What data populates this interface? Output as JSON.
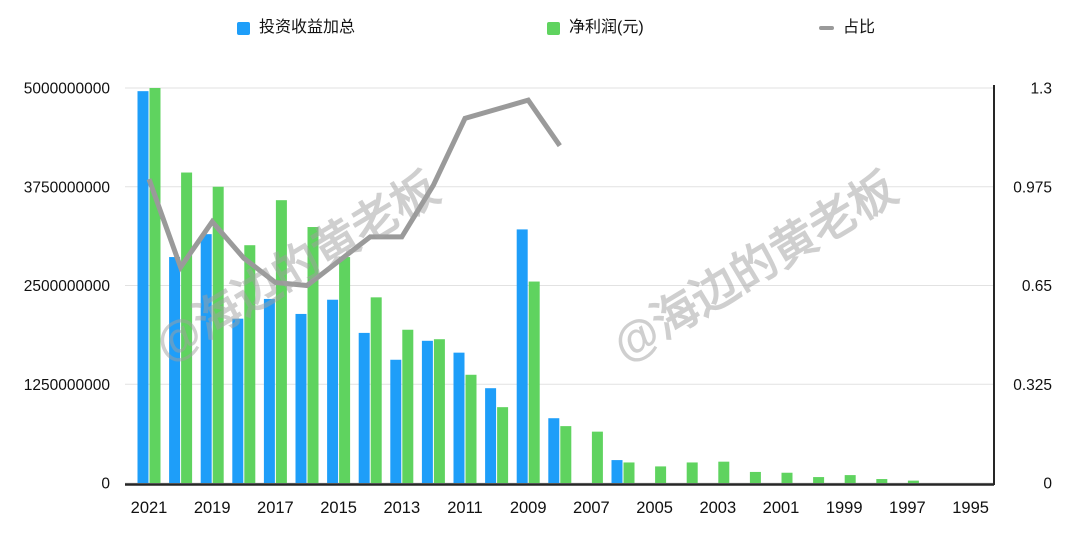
{
  "legend": {
    "items": [
      {
        "label": "投资收益加总",
        "color": "#1E9EF9",
        "marker": "square"
      },
      {
        "label": "净利润(元)",
        "color": "#5FD35F",
        "marker": "square"
      },
      {
        "label": "占比",
        "color": "#9A9A9A",
        "marker": "line"
      }
    ]
  },
  "watermark": {
    "text": "@海边的黄老板"
  },
  "chart_data": {
    "type": "bar",
    "subtype": "grouped bars with secondary-axis line",
    "title": "",
    "xlabel": "",
    "ylabel": "",
    "grid": true,
    "legend_position": "top",
    "categories": [
      "2021",
      "2020",
      "2019",
      "2018",
      "2017",
      "2016",
      "2015",
      "2014",
      "2013",
      "2012",
      "2011",
      "2010",
      "2009",
      "2008",
      "2007",
      "2006",
      "2005",
      "2004",
      "2003",
      "2002",
      "2001",
      "2000",
      "1999",
      "1998",
      "1997",
      "1996",
      "1995"
    ],
    "x_tick_labels": [
      "2021",
      "2019",
      "2017",
      "2015",
      "2013",
      "2011",
      "2009",
      "2007",
      "2005",
      "2003",
      "2001",
      "1999",
      "1997",
      "1995"
    ],
    "left_axis": {
      "min": 0,
      "max": 5000000000,
      "tick_labels": [
        "5000000000",
        "3750000000",
        "2500000000",
        "1250000000",
        "0"
      ],
      "tick_values": [
        5000000000,
        3750000000,
        2500000000,
        1250000000,
        0
      ]
    },
    "right_axis": {
      "min": 0,
      "max": 1.3,
      "tick_labels": [
        "1.3",
        "0.975",
        "0.65",
        "0.325",
        "0"
      ],
      "tick_values": [
        1.3,
        0.975,
        0.65,
        0.325,
        0
      ]
    },
    "series": [
      {
        "name": "投资收益加总",
        "type": "bar",
        "axis": "left",
        "color": "#1E9EF9",
        "values": [
          4960000000,
          2860000000,
          3150000000,
          2080000000,
          2330000000,
          2140000000,
          2320000000,
          1900000000,
          1560000000,
          1800000000,
          1650000000,
          1200000000,
          3210000000,
          820000000,
          0,
          290000000,
          0,
          0,
          0,
          0,
          0,
          0,
          0,
          0,
          0,
          0,
          0
        ]
      },
      {
        "name": "净利润(元)",
        "type": "bar",
        "axis": "left",
        "color": "#5FD35F",
        "values": [
          5000000000,
          3930000000,
          3750000000,
          3010000000,
          3580000000,
          3240000000,
          2860000000,
          2350000000,
          1940000000,
          1820000000,
          1370000000,
          960000000,
          2550000000,
          720000000,
          650000000,
          260000000,
          210000000,
          260000000,
          270000000,
          140000000,
          130000000,
          75000000,
          100000000,
          50000000,
          30000000,
          0,
          0
        ]
      },
      {
        "name": "占比",
        "type": "line",
        "axis": "right",
        "color": "#9A9A9A",
        "values": [
          1.0,
          0.71,
          0.86,
          0.74,
          0.66,
          0.65,
          0.73,
          0.81,
          0.81,
          0.98,
          1.2,
          1.23,
          1.26,
          1.11,
          null,
          null,
          null,
          null,
          null,
          null,
          null,
          null,
          null,
          null,
          null,
          null,
          null
        ]
      }
    ]
  }
}
